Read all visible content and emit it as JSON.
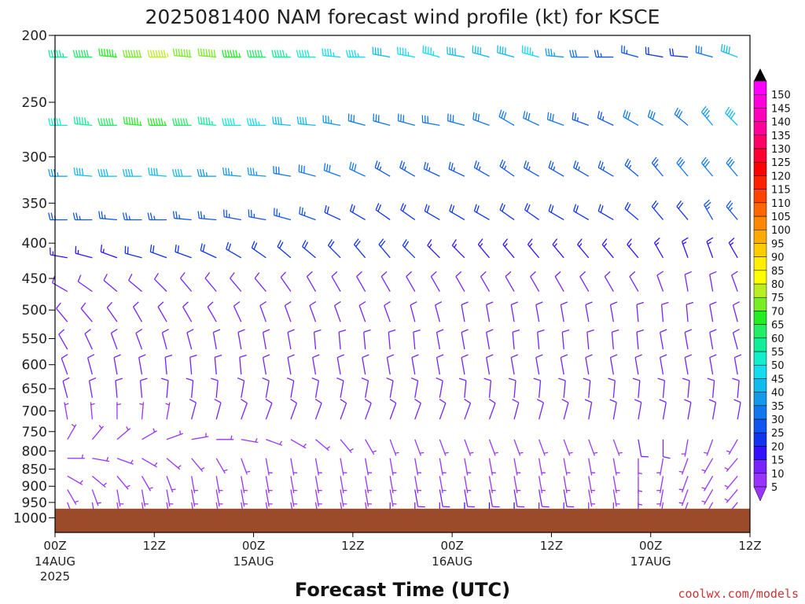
{
  "chart_data": {
    "type": "wind-barb",
    "title": "2025081400 NAM forecast wind profile (kt) for KSCE",
    "xlabel": "Forecast Time (UTC)",
    "credit": "coolwx.com/models",
    "y_axis": {
      "label": "",
      "scale": "log",
      "direction": "inverted",
      "range": [
        200,
        1050
      ],
      "ticks": [
        "200",
        "250",
        "300",
        "350",
        "400",
        "450",
        "500",
        "550",
        "600",
        "650",
        "700",
        "750",
        "800",
        "850",
        "900",
        "950",
        "1000"
      ]
    },
    "x_axis": {
      "range_hours": [
        0,
        84
      ],
      "ticks": [
        {
          "hour": 0,
          "label": "00Z",
          "date": "14AUG",
          "year": "2025"
        },
        {
          "hour": 12,
          "label": "12Z",
          "date": "",
          "year": ""
        },
        {
          "hour": 24,
          "label": "00Z",
          "date": "15AUG",
          "year": ""
        },
        {
          "hour": 36,
          "label": "12Z",
          "date": "",
          "year": ""
        },
        {
          "hour": 48,
          "label": "00Z",
          "date": "16AUG",
          "year": ""
        },
        {
          "hour": 60,
          "label": "12Z",
          "date": "",
          "year": ""
        },
        {
          "hour": 72,
          "label": "00Z",
          "date": "17AUG",
          "year": ""
        },
        {
          "hour": 84,
          "label": "12Z",
          "date": "",
          "year": ""
        }
      ]
    },
    "colorbar": {
      "unit": "kt",
      "levels": [
        5,
        10,
        15,
        20,
        25,
        30,
        35,
        40,
        45,
        50,
        55,
        60,
        65,
        70,
        75,
        80,
        85,
        90,
        95,
        100,
        105,
        110,
        115,
        120,
        125,
        130,
        135,
        140,
        145,
        150
      ],
      "colors": [
        "#9933ff",
        "#7722ff",
        "#3311ff",
        "#1133ee",
        "#1155ee",
        "#1177ee",
        "#1199ee",
        "#11bbee",
        "#11ddee",
        "#11eecc",
        "#11ee99",
        "#22ee66",
        "#22ee22",
        "#77ee22",
        "#bbee22",
        "#ffff00",
        "#ffee00",
        "#ffcc00",
        "#ffaa00",
        "#ff8800",
        "#ff6600",
        "#ff4400",
        "#ff2200",
        "#ff0000",
        "#ff0033",
        "#ff0066",
        "#ff0099",
        "#ff00bb",
        "#ff00dd",
        "#ff00ff"
      ]
    },
    "ground_level_hPa": 970,
    "time_step_hours": 3,
    "barb_levels_hPa": [
      215,
      270,
      320,
      370,
      420,
      470,
      520,
      570,
      620,
      670,
      720,
      770,
      820,
      870,
      910,
      950
    ],
    "wind_profile": [
      {
        "p": 215,
        "dir": [
          270,
          270,
          275,
          270,
          270,
          275,
          275,
          270,
          270,
          270,
          270,
          275,
          270,
          280,
          280,
          285,
          280,
          285,
          285,
          285,
          275,
          270,
          270,
          285,
          280,
          275,
          285,
          290,
          285,
          290
        ],
        "spd": [
          55,
          60,
          65,
          70,
          75,
          70,
          70,
          65,
          60,
          55,
          50,
          45,
          45,
          40,
          45,
          45,
          40,
          40,
          40,
          45,
          35,
          30,
          25,
          25,
          20,
          20,
          30,
          40,
          45,
          45
        ]
      },
      {
        "p": 270,
        "dir": [
          270,
          275,
          270,
          275,
          270,
          270,
          275,
          270,
          270,
          275,
          275,
          280,
          285,
          285,
          285,
          280,
          285,
          290,
          300,
          295,
          290,
          290,
          295,
          300,
          300,
          310,
          320,
          315,
          310,
          315
        ],
        "spd": [
          50,
          55,
          60,
          65,
          65,
          60,
          55,
          50,
          45,
          40,
          40,
          35,
          30,
          30,
          30,
          30,
          30,
          30,
          30,
          30,
          30,
          25,
          25,
          30,
          30,
          30,
          35,
          40,
          45,
          45
        ]
      },
      {
        "p": 320,
        "dir": [
          270,
          275,
          270,
          270,
          275,
          270,
          270,
          275,
          275,
          280,
          285,
          290,
          295,
          300,
          300,
          295,
          295,
          300,
          305,
          300,
          300,
          300,
          300,
          310,
          320,
          320,
          320,
          320,
          325,
          320
        ],
        "spd": [
          35,
          40,
          40,
          40,
          40,
          40,
          35,
          35,
          35,
          30,
          30,
          30,
          30,
          25,
          25,
          25,
          25,
          25,
          25,
          25,
          25,
          25,
          25,
          25,
          25,
          30,
          30,
          30,
          30,
          30
        ]
      },
      {
        "p": 370,
        "dir": [
          270,
          270,
          275,
          270,
          270,
          275,
          275,
          280,
          280,
          285,
          290,
          295,
          300,
          305,
          305,
          300,
          300,
          300,
          305,
          305,
          300,
          300,
          300,
          310,
          320,
          320,
          330,
          320,
          320,
          320
        ],
        "spd": [
          25,
          25,
          25,
          25,
          25,
          25,
          25,
          25,
          25,
          25,
          25,
          20,
          20,
          20,
          20,
          20,
          20,
          20,
          20,
          20,
          20,
          20,
          20,
          20,
          20,
          20,
          25,
          25,
          20,
          20
        ]
      },
      {
        "p": 420,
        "dir": [
          280,
          285,
          290,
          285,
          290,
          290,
          295,
          300,
          305,
          310,
          310,
          315,
          320,
          320,
          315,
          315,
          315,
          320,
          320,
          320,
          320,
          320,
          320,
          320,
          330,
          340,
          340,
          330,
          330,
          330
        ],
        "spd": [
          15,
          15,
          15,
          20,
          20,
          20,
          20,
          20,
          20,
          20,
          20,
          20,
          20,
          20,
          20,
          15,
          15,
          15,
          15,
          15,
          15,
          15,
          15,
          15,
          15,
          15,
          15,
          15,
          15,
          15
        ]
      },
      {
        "p": 470,
        "dir": [
          300,
          305,
          310,
          310,
          315,
          320,
          320,
          320,
          320,
          325,
          330,
          330,
          330,
          330,
          330,
          330,
          330,
          330,
          330,
          330,
          330,
          330,
          330,
          330,
          340,
          350,
          350,
          340,
          340,
          340
        ],
        "spd": [
          10,
          10,
          10,
          10,
          10,
          10,
          10,
          10,
          10,
          10,
          10,
          10,
          10,
          10,
          10,
          10,
          10,
          10,
          10,
          10,
          10,
          10,
          10,
          10,
          10,
          10,
          10,
          10,
          10,
          10
        ]
      },
      {
        "p": 520,
        "dir": [
          320,
          320,
          325,
          330,
          330,
          330,
          330,
          335,
          340,
          340,
          340,
          340,
          340,
          340,
          345,
          345,
          350,
          350,
          350,
          350,
          350,
          350,
          350,
          355,
          355,
          355,
          350,
          345,
          345,
          345
        ],
        "spd": [
          10,
          10,
          10,
          10,
          10,
          10,
          10,
          10,
          10,
          10,
          10,
          10,
          10,
          10,
          10,
          10,
          10,
          10,
          10,
          10,
          10,
          10,
          10,
          10,
          10,
          10,
          10,
          10,
          10,
          10
        ]
      },
      {
        "p": 570,
        "dir": [
          330,
          335,
          340,
          340,
          345,
          345,
          350,
          350,
          350,
          350,
          355,
          355,
          355,
          355,
          355,
          350,
          350,
          350,
          355,
          355,
          355,
          355,
          355,
          355,
          350,
          350,
          350,
          345,
          345,
          345
        ],
        "spd": [
          10,
          10,
          10,
          10,
          10,
          10,
          10,
          10,
          10,
          10,
          10,
          10,
          10,
          10,
          10,
          10,
          10,
          10,
          10,
          10,
          10,
          10,
          10,
          10,
          10,
          10,
          10,
          10,
          10,
          10
        ]
      },
      {
        "p": 620,
        "dir": [
          340,
          345,
          350,
          350,
          355,
          355,
          355,
          355,
          350,
          350,
          350,
          350,
          350,
          350,
          350,
          350,
          350,
          350,
          350,
          350,
          350,
          350,
          350,
          350,
          350,
          350,
          350,
          350,
          350,
          350
        ],
        "spd": [
          10,
          10,
          10,
          10,
          10,
          10,
          10,
          10,
          10,
          10,
          10,
          10,
          10,
          10,
          10,
          10,
          10,
          10,
          10,
          10,
          10,
          10,
          10,
          10,
          10,
          10,
          10,
          10,
          10,
          10
        ]
      },
      {
        "p": 670,
        "dir": [
          345,
          350,
          355,
          355,
          5,
          5,
          5,
          10,
          10,
          10,
          10,
          10,
          10,
          10,
          10,
          10,
          5,
          5,
          5,
          5,
          5,
          5,
          5,
          5,
          5,
          5,
          5,
          5,
          5,
          5
        ],
        "spd": [
          10,
          10,
          10,
          10,
          10,
          10,
          10,
          10,
          10,
          10,
          10,
          10,
          10,
          10,
          10,
          10,
          10,
          10,
          10,
          10,
          10,
          10,
          10,
          10,
          10,
          10,
          10,
          10,
          10,
          10
        ]
      },
      {
        "p": 720,
        "dir": [
          350,
          355,
          360,
          5,
          10,
          15,
          15,
          20,
          20,
          20,
          20,
          20,
          20,
          20,
          20,
          20,
          20,
          20,
          15,
          15,
          15,
          10,
          10,
          10,
          10,
          10,
          10,
          10,
          10,
          10
        ],
        "spd": [
          5,
          5,
          5,
          5,
          5,
          10,
          10,
          10,
          10,
          10,
          10,
          10,
          10,
          10,
          10,
          10,
          10,
          10,
          10,
          10,
          10,
          10,
          10,
          10,
          10,
          10,
          10,
          10,
          10,
          10
        ]
      },
      {
        "p": 770,
        "dir": [
          30,
          40,
          50,
          60,
          70,
          80,
          90,
          100,
          110,
          120,
          130,
          140,
          150,
          160,
          160,
          160,
          160,
          160,
          160,
          160,
          160,
          160,
          160,
          170,
          180,
          190,
          200,
          210,
          220,
          230
        ],
        "spd": [
          5,
          5,
          5,
          5,
          5,
          5,
          5,
          5,
          5,
          5,
          5,
          5,
          5,
          5,
          5,
          5,
          5,
          5,
          5,
          5,
          5,
          5,
          5,
          10,
          10,
          5,
          5,
          5,
          5,
          5
        ]
      },
      {
        "p": 820,
        "dir": [
          90,
          100,
          110,
          120,
          130,
          140,
          150,
          160,
          170,
          170,
          170,
          170,
          170,
          170,
          170,
          170,
          170,
          170,
          170,
          170,
          170,
          170,
          170,
          180,
          190,
          200,
          210,
          220,
          230,
          240
        ],
        "spd": [
          5,
          5,
          5,
          5,
          5,
          5,
          5,
          5,
          5,
          5,
          5,
          5,
          5,
          5,
          5,
          5,
          5,
          5,
          5,
          5,
          5,
          5,
          5,
          5,
          5,
          5,
          5,
          5,
          5,
          5
        ]
      },
      {
        "p": 870,
        "dir": [
          120,
          130,
          140,
          150,
          160,
          170,
          170,
          170,
          170,
          170,
          170,
          170,
          170,
          170,
          170,
          170,
          170,
          170,
          170,
          170,
          170,
          170,
          170,
          180,
          190,
          200,
          210,
          220,
          230,
          240
        ],
        "spd": [
          5,
          5,
          5,
          5,
          5,
          5,
          5,
          5,
          5,
          5,
          5,
          5,
          5,
          5,
          5,
          5,
          5,
          5,
          5,
          5,
          5,
          5,
          5,
          5,
          5,
          5,
          5,
          5,
          5,
          5
        ]
      },
      {
        "p": 910,
        "dir": [
          150,
          160,
          170,
          170,
          170,
          170,
          170,
          170,
          170,
          170,
          170,
          170,
          170,
          170,
          170,
          170,
          170,
          170,
          170,
          170,
          170,
          170,
          170,
          180,
          190,
          200,
          210,
          220,
          230,
          240
        ],
        "spd": [
          5,
          5,
          5,
          5,
          5,
          5,
          5,
          5,
          5,
          5,
          5,
          5,
          5,
          5,
          10,
          10,
          10,
          10,
          10,
          10,
          10,
          5,
          5,
          5,
          5,
          5,
          5,
          5,
          5,
          5
        ]
      },
      {
        "p": 950,
        "dir": [
          160,
          170,
          170,
          170,
          170,
          170,
          170,
          170,
          170,
          170,
          170,
          170,
          170,
          180,
          180,
          180,
          180,
          180,
          180,
          180,
          180,
          180,
          180,
          180,
          190,
          200,
          210,
          220,
          230,
          240
        ],
        "spd": [
          5,
          5,
          5,
          5,
          5,
          5,
          5,
          5,
          5,
          5,
          5,
          5,
          5,
          10,
          10,
          10,
          15,
          15,
          15,
          10,
          10,
          5,
          5,
          5,
          5,
          5,
          5,
          5,
          5,
          5
        ]
      }
    ]
  }
}
